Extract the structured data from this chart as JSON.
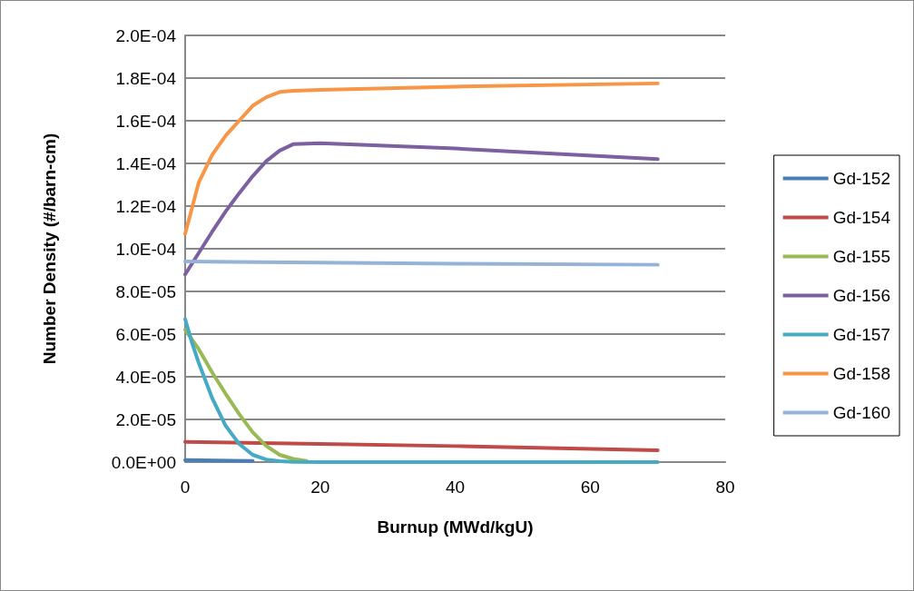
{
  "chart_data": {
    "type": "line",
    "xlabel": "Burnup (MWd/kgU)",
    "ylabel": "Number Density (#/barn-cm)",
    "xlim": [
      0,
      80
    ],
    "xticks": [
      0,
      20,
      40,
      60,
      80
    ],
    "ylim": [
      0,
      0.0002
    ],
    "yticks": [
      {
        "value": 0,
        "label": "0.0E+00"
      },
      {
        "value": 2e-05,
        "label": "2.0E-05"
      },
      {
        "value": 4e-05,
        "label": "4.0E-05"
      },
      {
        "value": 6e-05,
        "label": "6.0E-05"
      },
      {
        "value": 8e-05,
        "label": "8.0E-05"
      },
      {
        "value": 0.0001,
        "label": "1.0E-04"
      },
      {
        "value": 0.00012,
        "label": "1.2E-04"
      },
      {
        "value": 0.00014,
        "label": "1.4E-04"
      },
      {
        "value": 0.00016,
        "label": "1.6E-04"
      },
      {
        "value": 0.00018,
        "label": "1.8E-04"
      },
      {
        "value": 0.0002,
        "label": "2.0E-04"
      }
    ],
    "grid": "y",
    "legend": "right",
    "marker": "none",
    "series": [
      {
        "name": "Gd-152",
        "color": "#4a7ebb",
        "x": [
          0,
          10
        ],
        "values": [
          1e-06,
          5e-07
        ]
      },
      {
        "name": "Gd-154",
        "color": "#be4b48",
        "x": [
          0,
          20,
          40,
          70
        ],
        "values": [
          9.5e-06,
          8.5e-06,
          7.5e-06,
          5.5e-06
        ]
      },
      {
        "name": "Gd-155",
        "color": "#98b954",
        "x": [
          0,
          2,
          4,
          6,
          8,
          10,
          12,
          14,
          16,
          18
        ],
        "values": [
          6.2e-05,
          5.3e-05,
          4.2e-05,
          3.2e-05,
          2.25e-05,
          1.4e-05,
          7.6e-06,
          3.4e-06,
          1.5e-06,
          5e-07
        ]
      },
      {
        "name": "Gd-156",
        "color": "#7d60a0",
        "x": [
          0,
          2,
          4,
          6,
          8,
          10,
          12,
          14,
          16,
          20,
          40,
          70
        ],
        "values": [
          8.8e-05,
          9.8e-05,
          0.000108,
          0.0001175,
          0.000126,
          0.000134,
          0.000141,
          0.000146,
          0.000149,
          0.0001495,
          0.000147,
          0.000142
        ]
      },
      {
        "name": "Gd-157",
        "color": "#46aac5",
        "x": [
          0,
          1,
          2,
          4,
          6,
          8,
          10,
          12,
          14,
          16,
          20,
          40,
          70
        ],
        "values": [
          6.7e-05,
          5.6e-05,
          4.66e-05,
          3e-05,
          1.7e-05,
          8.5e-06,
          3.4e-06,
          1.2e-06,
          4e-07,
          1e-07,
          0,
          0,
          0
        ]
      },
      {
        "name": "Gd-158",
        "color": "#f79646",
        "x": [
          0,
          2,
          4,
          6,
          8,
          10,
          12,
          14,
          16,
          20,
          40,
          70
        ],
        "values": [
          0.000107,
          0.000131,
          0.000144,
          0.000153,
          0.00016,
          0.000167,
          0.000171,
          0.0001735,
          0.000174,
          0.0001745,
          0.000176,
          0.0001775
        ]
      },
      {
        "name": "Gd-160",
        "color": "#95b3d7",
        "x": [
          0,
          20,
          40,
          70
        ],
        "values": [
          9.4e-05,
          9.35e-05,
          9.3e-05,
          9.25e-05
        ]
      }
    ]
  }
}
